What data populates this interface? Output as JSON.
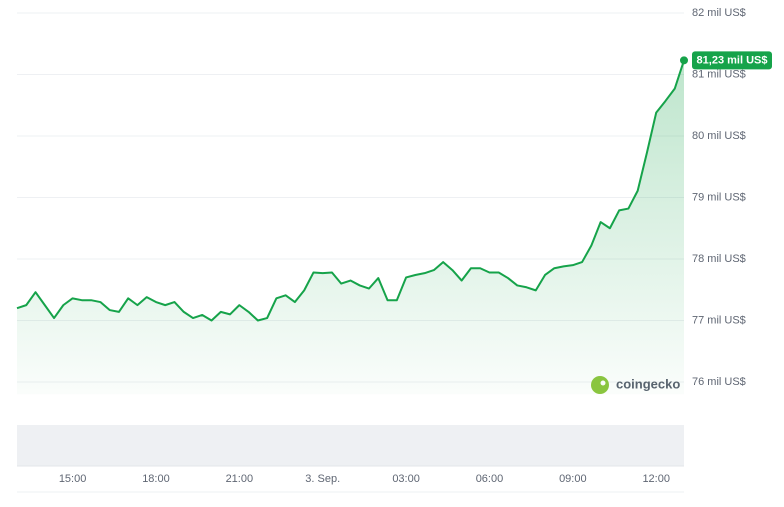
{
  "chart_data": {
    "type": "line",
    "categories": [
      null,
      null,
      null,
      null,
      null,
      null,
      "15:00",
      null,
      null,
      null,
      null,
      null,
      null,
      null,
      null,
      "18:00",
      null,
      null,
      null,
      null,
      null,
      null,
      null,
      null,
      "21:00",
      null,
      null,
      null,
      null,
      null,
      null,
      null,
      null,
      "3. Sep.",
      null,
      null,
      null,
      null,
      null,
      null,
      null,
      null,
      "03:00",
      null,
      null,
      null,
      null,
      null,
      null,
      null,
      null,
      "06:00",
      null,
      null,
      null,
      null,
      null,
      null,
      null,
      null,
      "09:00",
      null,
      null,
      null,
      null,
      null,
      null,
      null,
      null,
      "12:00",
      null,
      null,
      null
    ],
    "series": [
      {
        "color": "#16a34a",
        "values": [
          77.2,
          77.25,
          77.46,
          77.25,
          77.04,
          77.25,
          77.36,
          77.33,
          77.33,
          77.3,
          77.17,
          77.14,
          77.36,
          77.25,
          77.38,
          77.3,
          77.25,
          77.3,
          77.14,
          77.04,
          77.09,
          77.0,
          77.14,
          77.1,
          77.25,
          77.14,
          77.0,
          77.04,
          77.36,
          77.41,
          77.3,
          77.49,
          77.78,
          77.77,
          77.78,
          77.6,
          77.65,
          77.57,
          77.52,
          77.69,
          77.33,
          77.33,
          77.7,
          77.74,
          77.77,
          77.82,
          77.95,
          77.82,
          77.65,
          77.85,
          77.85,
          77.78,
          77.78,
          77.69,
          77.57,
          77.54,
          77.49,
          77.74,
          77.85,
          77.88,
          77.9,
          77.95,
          78.22,
          78.6,
          78.5,
          78.79,
          78.82,
          79.11,
          79.73,
          80.38,
          80.57,
          80.77,
          81.23
        ]
      }
    ],
    "current_label": "81,23 mil US$",
    "ylim": [
      75.8,
      82.2
    ],
    "yticks": [
      {
        "value": 76,
        "label": "76 mil US$"
      },
      {
        "value": 77,
        "label": "77 mil US$"
      },
      {
        "value": 78,
        "label": "78 mil US$"
      },
      {
        "value": 79,
        "label": "79 mil US$"
      },
      {
        "value": 80,
        "label": "80 mil US$"
      },
      {
        "value": 81,
        "label": "81 mil US$"
      },
      {
        "value": 82,
        "label": "82 mil US$"
      }
    ],
    "grid": true,
    "watermark": "coingecko"
  }
}
